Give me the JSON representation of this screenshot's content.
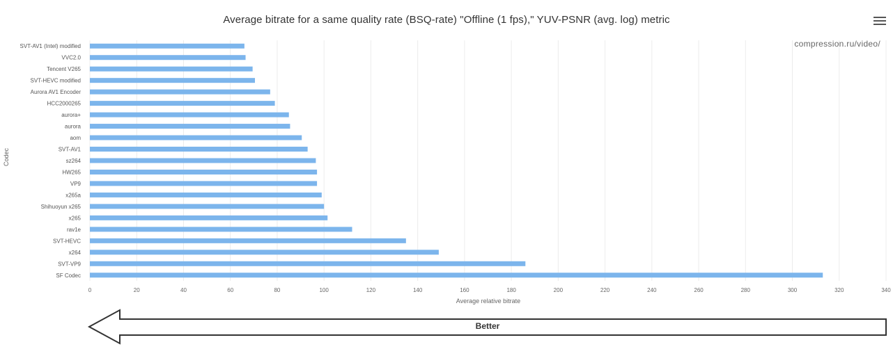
{
  "chart_data": {
    "type": "bar",
    "orientation": "horizontal",
    "title": "Average bitrate for a same quality rate (BSQ-rate) \"Offline (1 fps),\" YUV-PSNR (avg. log) metric",
    "xlabel": "Average relative bitrate",
    "ylabel": "Codec",
    "xlim": [
      0,
      340
    ],
    "xticks": [
      0,
      20,
      40,
      60,
      80,
      100,
      120,
      140,
      160,
      180,
      200,
      220,
      240,
      260,
      280,
      300,
      320,
      340
    ],
    "grid": true,
    "bar_color": "#7cb5ec",
    "categories": [
      "SVT-AV1 (Intel) modified",
      "VVC2.0",
      "Tencent V265",
      "SVT-HEVC modified",
      "Aurora AV1 Encoder",
      "HCC2000265",
      "aurora+",
      "aurora",
      "aom",
      "SVT-AV1",
      "sz264",
      "HW265",
      "VP9",
      "x265a",
      "Shihuoyun x265",
      "x265",
      "rav1e",
      "SVT-HEVC",
      "x264",
      "SVT-VP9",
      "SF Codec"
    ],
    "values": [
      66,
      66.5,
      69.5,
      70.5,
      77,
      79,
      85,
      85.5,
      90.5,
      93,
      96.5,
      97,
      97,
      99,
      100,
      101.5,
      112,
      135,
      149,
      186,
      313
    ]
  },
  "watermark": "compression.ru/video/",
  "arrow_label": "Better",
  "menu_icon": "hamburger-menu-icon"
}
